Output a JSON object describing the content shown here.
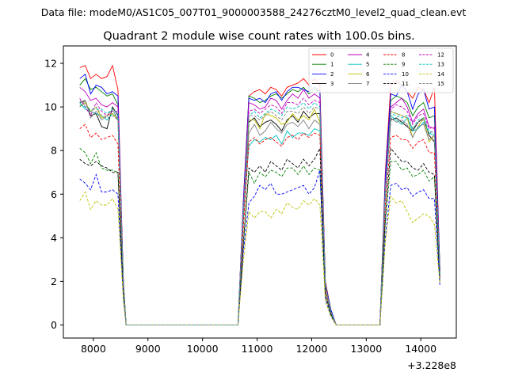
{
  "figure": {
    "suptitle": "Data file: modeM0/AS1C05_007T01_9000003588_24276cztM0_level2_quad_clean.evt"
  },
  "chart_data": {
    "type": "line",
    "title": "Quadrant 2 module wise count rates with 100.0s bins.",
    "xlabel": "",
    "ylabel": "",
    "x_offset_label": "+3.228e8",
    "xlim": [
      7450,
      14650
    ],
    "ylim": [
      -0.6,
      12.8
    ],
    "xticks": [
      8000,
      9000,
      10000,
      11000,
      12000,
      13000,
      14000
    ],
    "yticks": [
      0,
      2,
      4,
      6,
      8,
      10,
      12
    ],
    "grid": false,
    "legend": {
      "placement": "top-right",
      "columns": 4
    },
    "x": [
      7750,
      7850,
      7950,
      8050,
      8150,
      8250,
      8350,
      8450,
      8550,
      8600,
      9000,
      9500,
      10000,
      10500,
      10650,
      10750,
      10850,
      10950,
      11050,
      11150,
      11250,
      11350,
      11450,
      11550,
      11650,
      11750,
      11850,
      11950,
      12050,
      12150,
      12250,
      12350,
      12450,
      12600,
      13000,
      13250,
      13350,
      13450,
      13550,
      13650,
      13750,
      13850,
      13950,
      14050,
      14150,
      14250,
      14350
    ],
    "series": [
      {
        "name": "0",
        "color": "#ff0000",
        "dash": "solid",
        "values": [
          11.8,
          11.9,
          11.3,
          11.5,
          11.3,
          11.4,
          11.9,
          10.8,
          2.0,
          0,
          0,
          0,
          0,
          0,
          0,
          5.8,
          10.5,
          10.7,
          10.8,
          10.6,
          10.9,
          10.8,
          10.5,
          10.9,
          11.0,
          11.1,
          11.3,
          11.0,
          11.3,
          11.0,
          2.0,
          0.7,
          0,
          0,
          0,
          0,
          7.0,
          11.0,
          11.2,
          11.0,
          10.7,
          10.4,
          10.9,
          10.8,
          10.2,
          10.9,
          2.5
        ]
      },
      {
        "name": "1",
        "color": "#008000",
        "dash": "solid",
        "values": [
          11.0,
          11.3,
          10.8,
          10.9,
          10.7,
          10.5,
          10.6,
          10.1,
          1.9,
          0,
          0,
          0,
          0,
          0,
          0,
          5.6,
          10.5,
          10.4,
          10.2,
          10.3,
          10.5,
          10.6,
          10.4,
          10.6,
          10.8,
          10.7,
          10.9,
          10.6,
          10.8,
          10.7,
          1.9,
          0.7,
          0,
          0,
          0,
          0,
          6.7,
          10.3,
          10.5,
          10.4,
          10.2,
          9.6,
          10.0,
          10.2,
          9.5,
          9.6,
          2.5
        ]
      },
      {
        "name": "2",
        "color": "#0000ff",
        "dash": "solid",
        "values": [
          11.3,
          11.5,
          10.6,
          11.0,
          10.9,
          10.6,
          10.7,
          10.5,
          1.9,
          0,
          0,
          0,
          0,
          0,
          0,
          5.7,
          10.4,
          10.3,
          10.4,
          10.2,
          10.6,
          10.7,
          10.3,
          10.7,
          10.9,
          10.9,
          10.8,
          10.7,
          10.9,
          10.7,
          1.9,
          0.7,
          0,
          0,
          0,
          0,
          6.8,
          10.6,
          10.5,
          11.0,
          10.7,
          9.9,
          10.6,
          10.8,
          9.9,
          10.0,
          2.6
        ]
      },
      {
        "name": "3",
        "color": "#000000",
        "dash": "solid",
        "values": [
          10.2,
          10.3,
          9.6,
          9.7,
          9.1,
          9.0,
          10.0,
          9.6,
          1.8,
          0,
          0,
          0,
          0,
          0,
          0,
          4.9,
          9.3,
          9.5,
          9.1,
          9.3,
          9.4,
          9.2,
          8.9,
          9.4,
          9.6,
          9.3,
          9.8,
          9.5,
          9.7,
          9.7,
          1.8,
          0.6,
          0,
          0,
          0,
          0,
          6.0,
          9.4,
          9.5,
          9.3,
          9.1,
          8.9,
          9.3,
          9.5,
          8.7,
          8.4,
          2.4
        ]
      },
      {
        "name": "4",
        "color": "#bf00bf",
        "dash": "solid",
        "values": [
          10.9,
          10.7,
          10.3,
          10.4,
          10.1,
          10.0,
          10.2,
          10.0,
          1.8,
          0,
          0,
          0,
          0,
          0,
          0,
          5.4,
          10.2,
          10.1,
          9.9,
          10.0,
          10.4,
          10.3,
          9.9,
          10.3,
          10.6,
          10.4,
          10.8,
          10.4,
          10.6,
          10.4,
          1.8,
          0.6,
          0,
          0,
          0,
          0,
          6.4,
          10.0,
          10.2,
          10.4,
          10.0,
          9.3,
          9.7,
          9.9,
          9.1,
          9.0,
          2.4
        ]
      },
      {
        "name": "5",
        "color": "#00bfbf",
        "dash": "solid",
        "values": [
          10.2,
          9.9,
          9.8,
          9.7,
          9.6,
          9.4,
          9.7,
          9.5,
          1.8,
          0,
          0,
          0,
          0,
          0,
          0,
          5.1,
          8.2,
          8.5,
          8.4,
          8.6,
          8.5,
          8.7,
          8.3,
          8.9,
          8.6,
          8.8,
          8.8,
          8.7,
          9.0,
          8.9,
          1.7,
          0.6,
          0,
          0,
          0,
          0,
          5.9,
          9.6,
          9.4,
          9.2,
          9.5,
          8.9,
          9.0,
          9.3,
          8.8,
          8.7,
          2.3
        ]
      },
      {
        "name": "6",
        "color": "#bfbf00",
        "dash": "solid",
        "values": [
          10.0,
          10.2,
          9.8,
          10.0,
          9.5,
          9.6,
          9.7,
          9.4,
          1.8,
          0,
          0,
          0,
          0,
          0,
          0,
          5.2,
          9.4,
          9.4,
          9.0,
          9.7,
          9.6,
          9.5,
          9.2,
          9.3,
          9.7,
          9.4,
          9.6,
          9.4,
          9.9,
          9.3,
          1.8,
          0.6,
          0,
          0,
          0,
          0,
          6.1,
          9.8,
          9.7,
          9.6,
          9.5,
          8.6,
          9.1,
          9.5,
          8.4,
          8.7,
          2.3
        ]
      },
      {
        "name": "7",
        "color": "#808080",
        "dash": "solid",
        "values": [
          10.0,
          10.3,
          9.5,
          9.8,
          9.4,
          9.6,
          9.9,
          9.4,
          1.8,
          0,
          0,
          0,
          0,
          0,
          0,
          5.0,
          8.8,
          9.2,
          8.7,
          8.9,
          9.3,
          9.0,
          8.8,
          9.2,
          9.3,
          9.1,
          9.4,
          9.0,
          9.4,
          9.2,
          1.7,
          0.6,
          0,
          0,
          0,
          0,
          6.0,
          9.5,
          9.3,
          9.4,
          9.2,
          8.6,
          9.1,
          9.2,
          8.5,
          8.7,
          2.3
        ]
      },
      {
        "name": "8",
        "color": "#ff0000",
        "dash": "dashed",
        "values": [
          9.0,
          9.2,
          8.6,
          8.8,
          8.5,
          8.6,
          8.7,
          8.3,
          1.6,
          0,
          0,
          0,
          0,
          0,
          0,
          4.5,
          8.4,
          8.6,
          8.3,
          8.5,
          8.6,
          8.4,
          8.2,
          8.6,
          8.7,
          8.5,
          8.8,
          8.6,
          8.8,
          8.7,
          1.6,
          0.6,
          0,
          0,
          0,
          0,
          5.5,
          8.6,
          8.7,
          8.5,
          8.5,
          8.1,
          8.4,
          8.5,
          7.9,
          7.9,
          2.2
        ]
      },
      {
        "name": "9",
        "color": "#008000",
        "dash": "dashed",
        "values": [
          8.1,
          7.9,
          7.4,
          7.9,
          7.2,
          7.1,
          7.1,
          7.0,
          1.4,
          0,
          0,
          0,
          0,
          0,
          0,
          3.7,
          7.0,
          6.5,
          7.0,
          6.8,
          7.1,
          7.0,
          6.8,
          7.2,
          7.2,
          6.9,
          7.3,
          6.9,
          7.2,
          7.1,
          1.4,
          0.5,
          0,
          0,
          0,
          0,
          4.7,
          7.5,
          7.5,
          7.1,
          7.2,
          6.8,
          6.9,
          7.1,
          6.6,
          6.8,
          2.0
        ]
      },
      {
        "name": "10",
        "color": "#0000ff",
        "dash": "dashed",
        "values": [
          6.7,
          6.5,
          6.2,
          6.9,
          6.1,
          6.1,
          6.2,
          6.0,
          1.2,
          0,
          0,
          0,
          0,
          0,
          0,
          3.4,
          5.6,
          5.9,
          6.4,
          6.2,
          6.5,
          6.0,
          6.0,
          6.1,
          6.2,
          6.3,
          6.4,
          6.0,
          6.3,
          7.1,
          1.2,
          0.4,
          0,
          0,
          0,
          0,
          4.0,
          6.4,
          6.5,
          6.2,
          6.3,
          5.9,
          6.1,
          6.2,
          5.8,
          5.8,
          1.8
        ]
      },
      {
        "name": "11",
        "color": "#000000",
        "dash": "dashed",
        "values": [
          7.6,
          7.4,
          7.3,
          7.5,
          7.3,
          7.2,
          7.0,
          7.0,
          1.4,
          0,
          0,
          0,
          0,
          0,
          0,
          3.8,
          7.2,
          7.0,
          7.3,
          7.0,
          7.5,
          7.3,
          7.1,
          7.6,
          7.4,
          7.2,
          7.6,
          7.3,
          7.6,
          8.1,
          1.4,
          0.5,
          0,
          0,
          0,
          0,
          4.9,
          8.1,
          7.8,
          7.5,
          7.5,
          7.2,
          7.1,
          7.4,
          7.0,
          6.9,
          2.0
        ]
      },
      {
        "name": "12",
        "color": "#bf00bf",
        "dash": "dashed",
        "values": [
          10.4,
          10.0,
          9.6,
          10.2,
          9.8,
          9.6,
          9.8,
          9.8,
          1.8,
          0,
          0,
          0,
          0,
          0,
          0,
          5.3,
          9.8,
          9.9,
          9.7,
          9.9,
          10.1,
          10.0,
          9.7,
          10.2,
          10.2,
          10.1,
          10.4,
          10.1,
          10.3,
          10.2,
          1.8,
          0.6,
          0,
          0,
          0,
          0,
          6.3,
          9.9,
          10.1,
          10.0,
          9.8,
          9.2,
          9.6,
          9.7,
          9.0,
          9.1,
          2.4
        ]
      },
      {
        "name": "13",
        "color": "#00bfbf",
        "dash": "dashed",
        "values": [
          10.1,
          10.0,
          9.9,
          9.9,
          9.9,
          9.7,
          9.9,
          9.7,
          1.8,
          0,
          0,
          0,
          0,
          0,
          0,
          5.2,
          9.6,
          9.8,
          9.5,
          9.7,
          9.9,
          9.8,
          9.6,
          10.0,
          9.9,
          10.0,
          10.2,
          9.9,
          10.2,
          10.0,
          1.8,
          0.6,
          0,
          0,
          0,
          0,
          6.2,
          9.7,
          9.6,
          9.5,
          9.6,
          9.0,
          9.4,
          9.5,
          8.9,
          8.8,
          2.3
        ]
      },
      {
        "name": "14",
        "color": "#bfbf00",
        "dash": "dashed",
        "values": [
          5.7,
          6.1,
          5.3,
          5.7,
          5.5,
          5.5,
          5.8,
          5.3,
          1.1,
          0,
          0,
          0,
          0,
          0,
          0,
          3.0,
          5.2,
          4.9,
          5.2,
          5.2,
          4.9,
          5.3,
          5.1,
          5.6,
          5.4,
          5.3,
          5.7,
          5.5,
          5.8,
          5.5,
          1.1,
          0.4,
          0,
          0,
          0,
          0,
          3.8,
          5.9,
          5.6,
          5.7,
          5.2,
          4.7,
          4.9,
          5.1,
          5.0,
          4.6,
          1.9
        ]
      },
      {
        "name": "15",
        "color": "#808080",
        "dash": "dashed",
        "values": [
          10.3,
          10.1,
          9.8,
          10.0,
          9.6,
          9.5,
          9.6,
          9.4,
          1.8,
          0,
          0,
          0,
          0,
          0,
          0,
          5.2,
          9.6,
          9.6,
          9.4,
          9.6,
          9.8,
          9.6,
          9.4,
          9.8,
          9.8,
          9.7,
          10.0,
          9.7,
          10.0,
          9.9,
          1.8,
          0.6,
          0,
          0,
          0,
          0,
          6.2,
          9.8,
          9.7,
          9.6,
          9.5,
          9.0,
          9.3,
          9.4,
          8.8,
          8.9,
          2.3
        ]
      }
    ]
  }
}
